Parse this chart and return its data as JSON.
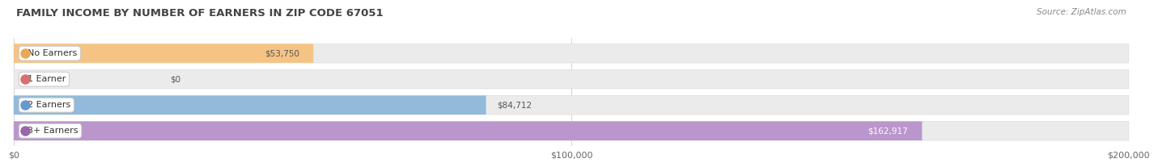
{
  "title": "FAMILY INCOME BY NUMBER OF EARNERS IN ZIP CODE 67051",
  "source": "Source: ZipAtlas.com",
  "categories": [
    "No Earners",
    "1 Earner",
    "2 Earners",
    "3+ Earners"
  ],
  "values": [
    53750,
    0,
    84712,
    162917
  ],
  "bar_colors": [
    "#f5c485",
    "#e89090",
    "#92bada",
    "#bb96cc"
  ],
  "label_dot_colors": [
    "#e8a855",
    "#d97070",
    "#6699cc",
    "#9966aa"
  ],
  "value_labels": [
    "$53,750",
    "$0",
    "$84,712",
    "$162,917"
  ],
  "value_inside": [
    true,
    false,
    false,
    true
  ],
  "value_text_colors": [
    "#555555",
    "#555555",
    "#555555",
    "#ffffff"
  ],
  "xlim": [
    0,
    200000
  ],
  "xticks": [
    0,
    100000,
    200000
  ],
  "xtick_labels": [
    "$0",
    "$100,000",
    "$200,000"
  ],
  "background_color": "#ffffff",
  "bar_track_color": "#ebebeb",
  "title_fontsize": 9.5,
  "source_fontsize": 7.5,
  "bar_height": 0.72,
  "bar_gap": 0.28
}
